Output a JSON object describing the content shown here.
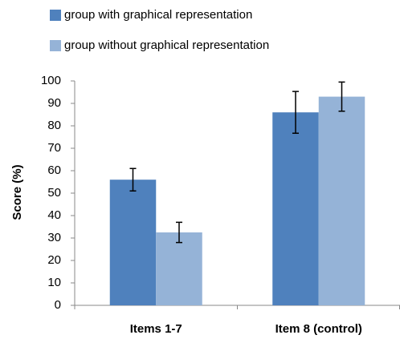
{
  "chart_data": {
    "type": "bar",
    "y_label": "Score (%)",
    "categories": [
      "Items 1-7",
      "Item 8 (control)"
    ],
    "series": [
      {
        "name": "group with graphical representation",
        "color": "#4f81bd",
        "values": [
          56,
          86
        ],
        "errors": [
          5,
          9.3
        ]
      },
      {
        "name": "group without graphical representation",
        "color": "#95b3d7",
        "values": [
          32.5,
          93
        ],
        "errors": [
          4.5,
          6.5
        ]
      }
    ],
    "ylim": [
      0,
      100
    ],
    "yticks": [
      0,
      10,
      20,
      30,
      40,
      50,
      60,
      70,
      80,
      90,
      100
    ],
    "grid": false,
    "legend": "top"
  }
}
